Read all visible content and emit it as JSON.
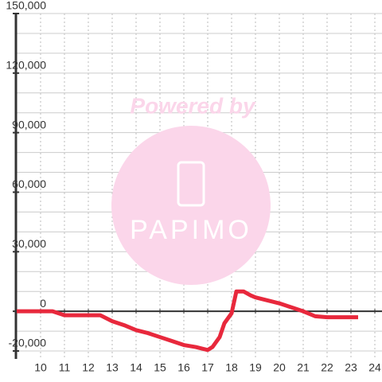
{
  "chart_data": {
    "type": "line",
    "watermark": [
      "Powered by",
      "PAPIMO"
    ],
    "x": [
      9,
      10.5,
      11,
      12.5,
      13,
      13.5,
      14,
      14.5,
      15,
      15.5,
      16,
      16.5,
      17,
      17.2,
      17.5,
      17.7,
      18,
      18.2,
      18.5,
      18.8,
      19,
      19.5,
      20,
      20.5,
      21,
      21.5,
      22,
      23.3
    ],
    "series": [
      {
        "color": "#e8283c",
        "values": [
          0,
          0,
          -2000,
          -2000,
          -5000,
          -7000,
          -9500,
          -11000,
          -13000,
          -15000,
          -17000,
          -18000,
          -19500,
          -18000,
          -13000,
          -6000,
          -1000,
          10000,
          10000,
          8000,
          7000,
          5500,
          4000,
          2000,
          0,
          -2500,
          -3000,
          -3000
        ]
      }
    ],
    "xlim": [
      8.967,
      24.3
    ],
    "xticks": [
      10,
      11,
      12,
      13,
      14,
      15,
      16,
      17,
      18,
      19,
      20,
      21,
      22,
      23,
      24
    ],
    "ylim": [
      -24000,
      150000
    ],
    "yticks": [
      {
        "value": -20000,
        "label": "-20,000"
      },
      0,
      {
        "value": 30000,
        "label": "30,000"
      },
      {
        "value": 60000,
        "label": "60,000"
      },
      {
        "value": 90000,
        "label": "90,000"
      },
      {
        "value": 120000,
        "label": "120,000"
      },
      {
        "value": 150000,
        "label": "150,000"
      }
    ],
    "ygrid": [
      -20000,
      -10000,
      10000,
      20000,
      30000,
      40000,
      50000,
      60000,
      70000,
      80000,
      90000,
      100000,
      110000,
      120000,
      130000,
      140000,
      150000
    ],
    "grid": true
  }
}
